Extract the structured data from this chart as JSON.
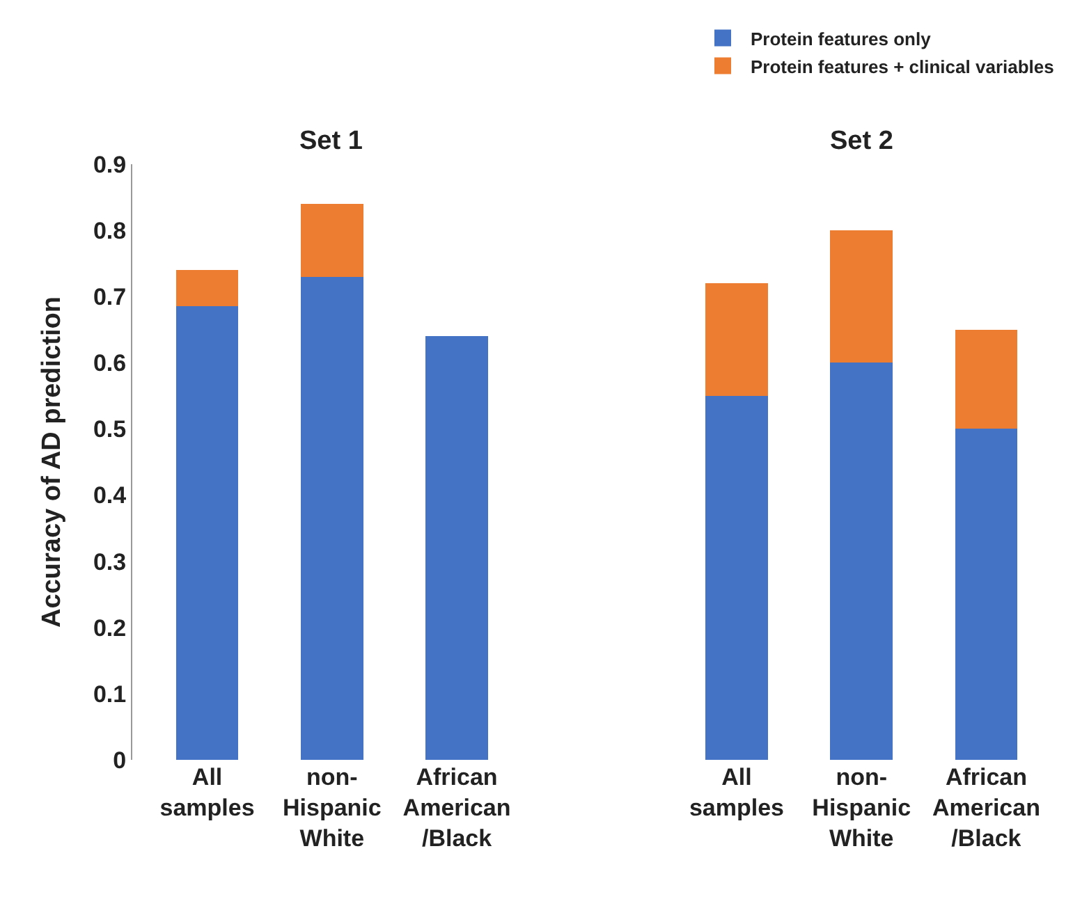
{
  "chart_data": [
    {
      "type": "bar",
      "title": "Set 1",
      "ylabel": "Accuracy of AD prediction",
      "categories": [
        "All samples",
        "non-Hispanic White",
        "African American /Black"
      ],
      "stacked": true,
      "ylim": [
        0,
        0.9
      ],
      "yticks": [
        0,
        0.1,
        0.2,
        0.3,
        0.4,
        0.5,
        0.6,
        0.7,
        0.8,
        0.9
      ],
      "legend": "top right",
      "series": [
        {
          "name": "Protein features only",
          "color": "#4472c4",
          "values": [
            0.685,
            0.73,
            0.64
          ]
        },
        {
          "name": "Protein features + clinical variables",
          "color": "#ed7d31",
          "values": [
            0.055,
            0.11,
            null
          ]
        }
      ]
    },
    {
      "type": "bar",
      "title": "Set 2",
      "categories": [
        "All samples",
        "non-Hispanic White",
        "African American /Black"
      ],
      "stacked": true,
      "ylim": [
        0,
        0.9
      ],
      "yticks": [
        0,
        0.1,
        0.2,
        0.3,
        0.4,
        0.5,
        0.6,
        0.7,
        0.8,
        0.9
      ],
      "tick_labels": "x",
      "series": [
        {
          "color": "#4472c4",
          "values": [
            0.55,
            0.6,
            0.5
          ]
        },
        {
          "color": "#ed7d31",
          "values": [
            0.17,
            0.2,
            0.15
          ]
        }
      ]
    }
  ]
}
